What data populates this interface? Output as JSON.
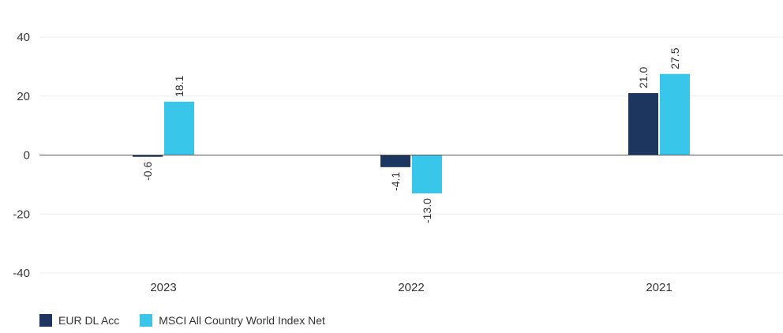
{
  "chart_data": {
    "type": "bar",
    "categories": [
      "2023",
      "2022",
      "2021"
    ],
    "series": [
      {
        "name": "EUR DL Acc",
        "values": [
          -0.6,
          -4.1,
          21.0
        ],
        "labels": [
          "-0.6",
          "-4.1",
          "21.0"
        ],
        "color": "#1c3660"
      },
      {
        "name": "MSCI All Country World Index Net",
        "values": [
          18.1,
          -13.0,
          27.5
        ],
        "labels": [
          "18.1",
          "-13.0",
          "27.5"
        ],
        "color": "#38c6ea"
      }
    ],
    "ylim": [
      -40,
      40
    ],
    "yticks": [
      "40",
      "20",
      "0",
      "-20",
      "-40"
    ],
    "title": "",
    "xlabel": "",
    "ylabel": "",
    "grid": true,
    "legend_position": "bottom-left"
  }
}
